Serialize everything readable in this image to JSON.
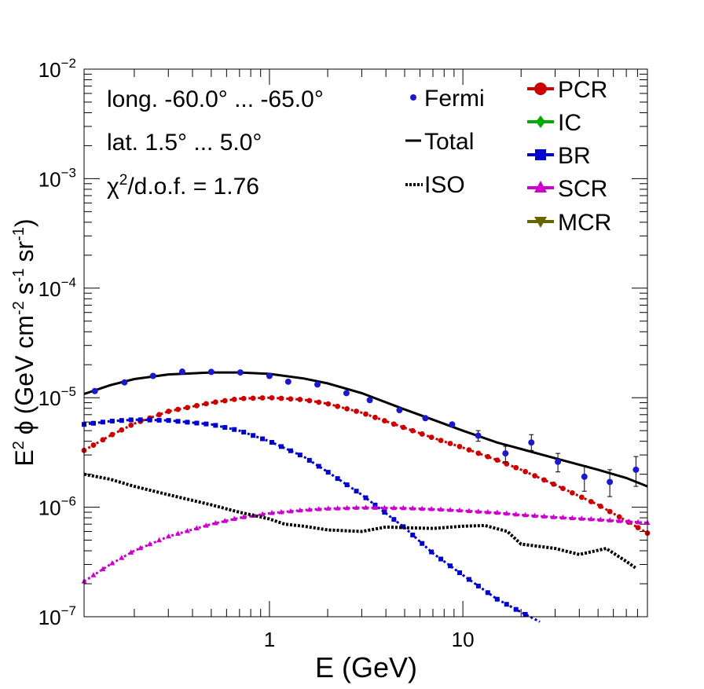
{
  "chart_data": {
    "type": "line",
    "xscale": "log",
    "yscale": "log",
    "xlim": [
      0.11,
      90
    ],
    "ylim": [
      1e-07,
      0.01
    ],
    "xlabel": "E (GeV)",
    "ylabel": {
      "base": "E",
      "base_sup": "2",
      "symbol": "ϕ",
      "open": "(GeV cm",
      "cm_sup": "-2",
      "s": "s",
      "s_sup": "-1",
      "sr": "sr",
      "sr_sup": "-1",
      "close": ")"
    },
    "x_ticks": [
      {
        "value": 1,
        "label": "1"
      },
      {
        "value": 10,
        "label": "10"
      }
    ],
    "y_ticks": [
      {
        "value": 1e-07,
        "base": "10",
        "exp": "−7"
      },
      {
        "value": 1e-06,
        "base": "10",
        "exp": "−6"
      },
      {
        "value": 1e-05,
        "base": "10",
        "exp": "−5"
      },
      {
        "value": 0.0001,
        "base": "10",
        "exp": "−4"
      },
      {
        "value": 0.001,
        "base": "10",
        "exp": "−3"
      },
      {
        "value": 0.01,
        "base": "10",
        "exp": "−2"
      }
    ],
    "annotations": {
      "longitude": "long. -60.0° ... -65.0°",
      "latitude": "lat. 1.5° ... 5.0°",
      "chi_symbol": "χ",
      "chi_exp": "2",
      "chi_rest": "/d.o.f. = 1.76"
    },
    "legend_left": {
      "placement": "top-center",
      "entries": [
        {
          "label": "Fermi",
          "style": "points"
        },
        {
          "label": "Total",
          "style": "solid"
        },
        {
          "label": "ISO",
          "style": "dotted"
        }
      ]
    },
    "legend_right": {
      "placement": "top-right",
      "entries": [
        {
          "label": "PCR",
          "marker": "circle",
          "color": "#cc0000"
        },
        {
          "label": "IC",
          "marker": "diamond",
          "color": "#00aa00"
        },
        {
          "label": "BR",
          "marker": "square",
          "color": "#0000cc"
        },
        {
          "label": "SCR",
          "marker": "triangle-up",
          "color": "#cc00cc"
        },
        {
          "label": "MCR",
          "marker": "triangle-down",
          "color": "#666600"
        }
      ]
    },
    "fermi": {
      "color": "#1a1acc",
      "points": [
        {
          "x": 0.125,
          "y": 1.15e-05
        },
        {
          "x": 0.178,
          "y": 1.38e-05
        },
        {
          "x": 0.25,
          "y": 1.58e-05
        },
        {
          "x": 0.354,
          "y": 1.73e-05
        },
        {
          "x": 0.5,
          "y": 1.72e-05
        },
        {
          "x": 0.707,
          "y": 1.7e-05
        },
        {
          "x": 1.0,
          "y": 1.58e-05
        },
        {
          "x": 1.25,
          "y": 1.4e-05
        },
        {
          "x": 1.77,
          "y": 1.32e-05
        },
        {
          "x": 2.5,
          "y": 1.1e-05
        },
        {
          "x": 3.3,
          "y": 9.5e-06
        },
        {
          "x": 4.7,
          "y": 7.7e-06
        },
        {
          "x": 6.4,
          "y": 6.5e-06
        },
        {
          "x": 8.8,
          "y": 5.7e-06
        },
        {
          "x": 12.0,
          "y": 4.5e-06,
          "err_lo": 4e-06,
          "err_hi": 5e-06
        },
        {
          "x": 16.6,
          "y": 3.1e-06,
          "err_lo": 2.6e-06,
          "err_hi": 3.6e-06
        },
        {
          "x": 22.6,
          "y": 3.9e-06,
          "err_lo": 3.3e-06,
          "err_hi": 4.6e-06
        },
        {
          "x": 31.0,
          "y": 2.6e-06,
          "err_lo": 2.1e-06,
          "err_hi": 3.1e-06
        },
        {
          "x": 42.5,
          "y": 1.9e-06,
          "err_lo": 1.4e-06,
          "err_hi": 2.4e-06
        },
        {
          "x": 57.5,
          "y": 1.7e-06,
          "err_lo": 1.25e-06,
          "err_hi": 2.2e-06
        },
        {
          "x": 78.5,
          "y": 2.2e-06,
          "err_lo": 1.55e-06,
          "err_hi": 2.9e-06
        }
      ]
    },
    "series": [
      {
        "name": "Total",
        "style": "solid",
        "color": "#000000",
        "x": [
          0.11,
          0.15,
          0.2,
          0.3,
          0.5,
          0.7,
          1.0,
          1.5,
          2.0,
          3.0,
          5.0,
          7.0,
          10,
          15,
          20,
          30,
          50,
          70,
          90
        ],
        "y": [
          1.08e-05,
          1.3e-05,
          1.48e-05,
          1.63e-05,
          1.7e-05,
          1.7e-05,
          1.65e-05,
          1.5e-05,
          1.35e-05,
          1.1e-05,
          7.8e-06,
          6.3e-06,
          5e-06,
          3.9e-06,
          3.4e-06,
          2.8e-06,
          2.2e-06,
          1.85e-06,
          1.55e-06
        ]
      },
      {
        "name": "PCR",
        "style": "markers",
        "marker": "circle",
        "color": "#cc0000",
        "x": [
          0.11,
          0.15,
          0.2,
          0.3,
          0.5,
          0.7,
          1.0,
          1.5,
          2.0,
          3.0,
          5.0,
          7.0,
          10,
          15,
          20,
          30,
          50,
          70,
          90
        ],
        "y": [
          3.3e-06,
          4.5e-06,
          5.8e-06,
          7.5e-06,
          9e-06,
          9.8e-06,
          1e-05,
          9.6e-06,
          8.8e-06,
          7.3e-06,
          5.3e-06,
          4.3e-06,
          3.5e-06,
          2.7e-06,
          2.2e-06,
          1.6e-06,
          1.05e-06,
          7.5e-07,
          5.8e-07
        ]
      },
      {
        "name": "BR",
        "style": "markers",
        "marker": "square",
        "color": "#0000cc",
        "x": [
          0.11,
          0.15,
          0.2,
          0.3,
          0.5,
          0.7,
          1.0,
          1.5,
          2.0,
          3.0,
          5.0,
          7.0,
          10,
          15,
          20,
          25
        ],
        "y": [
          5.7e-06,
          6.1e-06,
          6.3e-06,
          6.2e-06,
          5.7e-06,
          5e-06,
          4e-06,
          2.9e-06,
          2.1e-06,
          1.3e-06,
          6.5e-07,
          3.8e-07,
          2.4e-07,
          1.45e-07,
          1.1e-07,
          9e-08
        ]
      },
      {
        "name": "SCR",
        "style": "markers",
        "marker": "triangle-up",
        "color": "#cc00cc",
        "x": [
          0.11,
          0.15,
          0.2,
          0.3,
          0.5,
          0.7,
          1.0,
          1.5,
          2.0,
          3.0,
          5.0,
          7.0,
          10,
          15,
          20,
          30,
          50,
          70,
          90
        ],
        "y": [
          2.1e-07,
          3e-07,
          4e-07,
          5.4e-07,
          7e-07,
          8e-07,
          8.8e-07,
          9.4e-07,
          9.7e-07,
          9.9e-07,
          9.8e-07,
          9.6e-07,
          9.3e-07,
          8.9e-07,
          8.5e-07,
          8.1e-07,
          7.7e-07,
          7.4e-07,
          7.2e-07
        ]
      },
      {
        "name": "ISO",
        "style": "dotted",
        "color": "#000000",
        "x": [
          0.11,
          0.15,
          0.2,
          0.3,
          0.5,
          0.7,
          1.0,
          1.2,
          1.5,
          2.0,
          3.0,
          4.0,
          5.0,
          7.0,
          10,
          13,
          17,
          20,
          30,
          40,
          55,
          70,
          78
        ],
        "y": [
          2e-06,
          1.8e-06,
          1.55e-06,
          1.3e-06,
          1.05e-06,
          9e-07,
          7.8e-07,
          7e-07,
          6.7e-07,
          6.2e-07,
          6e-07,
          6.6e-07,
          6.5e-07,
          6.4e-07,
          6.7e-07,
          6.8e-07,
          6e-07,
          4.6e-07,
          4.2e-07,
          3.7e-07,
          4.2e-07,
          3.2e-07,
          2.8e-07
        ]
      }
    ]
  }
}
